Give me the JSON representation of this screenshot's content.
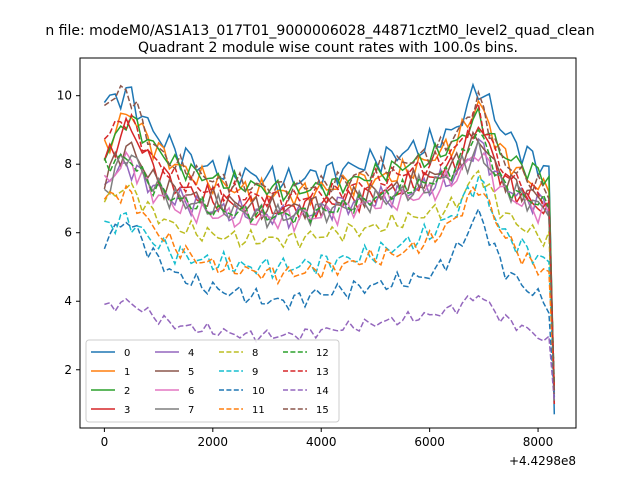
{
  "chart_data": {
    "type": "line",
    "suptitle": "n file: modeM0/AS1A13_017T01_9000006028_44871cztM0_level2_quad_clean",
    "title": "Quadrant 2 module wise count rates with 100.0s bins.",
    "xlabel": "",
    "ylabel": "",
    "x_offset_label": "+4.4298e8",
    "xlim": [
      -450,
      8700
    ],
    "ylim": [
      0.3,
      11.1
    ],
    "x_ticks": [
      0,
      2000,
      4000,
      6000,
      8000
    ],
    "x_tick_labels": [
      "0",
      "2000",
      "4000",
      "6000",
      "8000"
    ],
    "y_ticks": [
      2,
      4,
      6,
      8,
      10
    ],
    "y_tick_labels": [
      "2",
      "4",
      "6",
      "8",
      "10"
    ],
    "grid": false,
    "legend_position": "lower-left",
    "legend_columns": 4,
    "series_anchors": [
      {
        "name": "0",
        "color": "#1f77b4",
        "dash": "solid",
        "amp": 0.45,
        "y": [
          9.8,
          10.1,
          9.0,
          8.4,
          8.0,
          7.8,
          7.7,
          7.6,
          7.5,
          7.7,
          7.8,
          8.0,
          8.2,
          8.4,
          8.6,
          9.0,
          10.3,
          9.0,
          8.3,
          7.8
        ]
      },
      {
        "name": "1",
        "color": "#ff7f0e",
        "dash": "solid",
        "amp": 0.4,
        "y": [
          8.4,
          9.6,
          8.6,
          8.0,
          7.6,
          7.4,
          7.2,
          7.2,
          7.1,
          7.2,
          7.4,
          7.5,
          7.6,
          7.8,
          8.2,
          8.6,
          9.8,
          8.3,
          7.6,
          7.2
        ]
      },
      {
        "name": "2",
        "color": "#2ca02c",
        "dash": "solid",
        "amp": 0.35,
        "y": [
          8.2,
          9.4,
          8.6,
          8.0,
          7.7,
          7.5,
          7.4,
          7.3,
          7.2,
          7.3,
          7.4,
          7.6,
          7.8,
          8.0,
          8.2,
          8.6,
          9.4,
          8.3,
          7.9,
          7.6
        ]
      },
      {
        "name": "3",
        "color": "#d62728",
        "dash": "solid",
        "amp": 0.4,
        "y": [
          8.0,
          9.2,
          8.0,
          7.4,
          7.1,
          6.9,
          6.8,
          6.7,
          6.7,
          6.8,
          6.9,
          7.0,
          7.2,
          7.4,
          7.6,
          8.0,
          9.2,
          7.6,
          7.0,
          6.6
        ]
      },
      {
        "name": "4",
        "color": "#9467bd",
        "dash": "solid",
        "amp": 0.4,
        "y": [
          7.5,
          8.0,
          7.4,
          7.0,
          6.8,
          6.6,
          6.6,
          6.5,
          6.5,
          6.6,
          6.8,
          6.9,
          7.0,
          7.2,
          7.4,
          7.6,
          8.6,
          7.4,
          7.0,
          6.8
        ]
      },
      {
        "name": "5",
        "color": "#8c564b",
        "dash": "solid",
        "amp": 0.4,
        "y": [
          7.6,
          8.6,
          7.6,
          7.2,
          7.0,
          6.9,
          6.8,
          6.7,
          6.7,
          6.8,
          6.9,
          7.1,
          7.2,
          7.4,
          7.6,
          8.0,
          8.8,
          7.6,
          7.2,
          6.9
        ]
      },
      {
        "name": "6",
        "color": "#e377c2",
        "dash": "solid",
        "amp": 0.4,
        "y": [
          7.4,
          8.2,
          7.2,
          6.8,
          6.6,
          6.5,
          6.4,
          6.4,
          6.4,
          6.5,
          6.6,
          6.8,
          6.9,
          7.0,
          7.2,
          7.6,
          8.4,
          7.2,
          6.8,
          6.5
        ]
      },
      {
        "name": "7",
        "color": "#7f7f7f",
        "dash": "solid",
        "amp": 0.4,
        "y": [
          7.2,
          8.4,
          7.4,
          7.0,
          6.8,
          6.7,
          6.6,
          6.5,
          6.5,
          6.6,
          6.7,
          6.9,
          7.0,
          7.2,
          7.4,
          7.8,
          8.4,
          7.4,
          7.0,
          6.6
        ]
      },
      {
        "name": "8",
        "color": "#bcbd22",
        "dash": "dashed",
        "amp": 0.3,
        "y": [
          6.9,
          7.4,
          6.6,
          6.2,
          6.0,
          5.9,
          5.8,
          5.8,
          5.8,
          5.9,
          6.0,
          6.1,
          6.2,
          6.4,
          6.6,
          6.8,
          7.8,
          6.6,
          6.1,
          5.8
        ]
      },
      {
        "name": "9",
        "color": "#17becf",
        "dash": "dashed",
        "amp": 0.35,
        "y": [
          6.2,
          6.4,
          5.8,
          5.4,
          5.2,
          5.1,
          5.0,
          5.0,
          5.0,
          5.1,
          5.2,
          5.3,
          5.5,
          5.7,
          6.0,
          6.6,
          7.6,
          6.0,
          5.5,
          5.1
        ]
      },
      {
        "name": "10",
        "color": "#1f77b4",
        "dash": "dashed",
        "amp": 0.3,
        "y": [
          5.8,
          6.4,
          5.4,
          4.8,
          4.5,
          4.3,
          4.2,
          4.0,
          4.0,
          4.2,
          4.3,
          4.4,
          4.5,
          4.6,
          4.8,
          5.4,
          6.6,
          5.0,
          4.4,
          3.9
        ]
      },
      {
        "name": "11",
        "color": "#ff7f0e",
        "dash": "dashed",
        "amp": 0.3,
        "y": [
          7.0,
          7.2,
          6.2,
          5.6,
          5.2,
          5.0,
          4.9,
          4.8,
          4.8,
          4.9,
          5.0,
          5.2,
          5.3,
          5.5,
          5.8,
          6.4,
          7.4,
          6.0,
          5.2,
          4.8
        ]
      },
      {
        "name": "12",
        "color": "#2ca02c",
        "dash": "dashed",
        "amp": 0.3,
        "y": [
          8.0,
          8.2,
          7.4,
          7.0,
          6.8,
          6.6,
          6.6,
          6.5,
          6.5,
          6.6,
          6.7,
          6.9,
          7.1,
          7.3,
          7.5,
          7.9,
          9.0,
          7.4,
          7.0,
          6.8
        ]
      },
      {
        "name": "13",
        "color": "#d62728",
        "dash": "dashed",
        "amp": 0.35,
        "y": [
          8.8,
          9.4,
          8.2,
          7.6,
          7.3,
          7.2,
          7.1,
          7.0,
          7.0,
          7.1,
          7.2,
          7.4,
          7.6,
          7.8,
          8.0,
          8.4,
          9.6,
          7.8,
          7.3,
          6.9
        ]
      },
      {
        "name": "14",
        "color": "#9467bd",
        "dash": "dashed",
        "amp": 0.2,
        "y": [
          3.8,
          4.0,
          3.6,
          3.3,
          3.2,
          3.1,
          3.0,
          3.0,
          3.0,
          3.1,
          3.2,
          3.3,
          3.4,
          3.5,
          3.6,
          3.8,
          4.2,
          3.5,
          3.2,
          2.8
        ]
      },
      {
        "name": "15",
        "color": "#8c564b",
        "dash": "dashed",
        "amp": 0.35,
        "y": [
          9.8,
          10.2,
          8.6,
          8.0,
          7.7,
          7.5,
          7.4,
          7.3,
          7.3,
          7.4,
          7.5,
          7.7,
          7.9,
          8.1,
          8.3,
          8.8,
          9.9,
          8.1,
          7.6,
          7.2
        ]
      }
    ],
    "series_end_values": [
      0.7,
      1.0,
      1.2,
      1.0,
      1.3,
      1.1,
      1.2,
      1.1,
      1.4,
      1.3,
      1.2,
      1.5,
      1.6,
      1.4,
      1.1,
      1.3
    ]
  }
}
